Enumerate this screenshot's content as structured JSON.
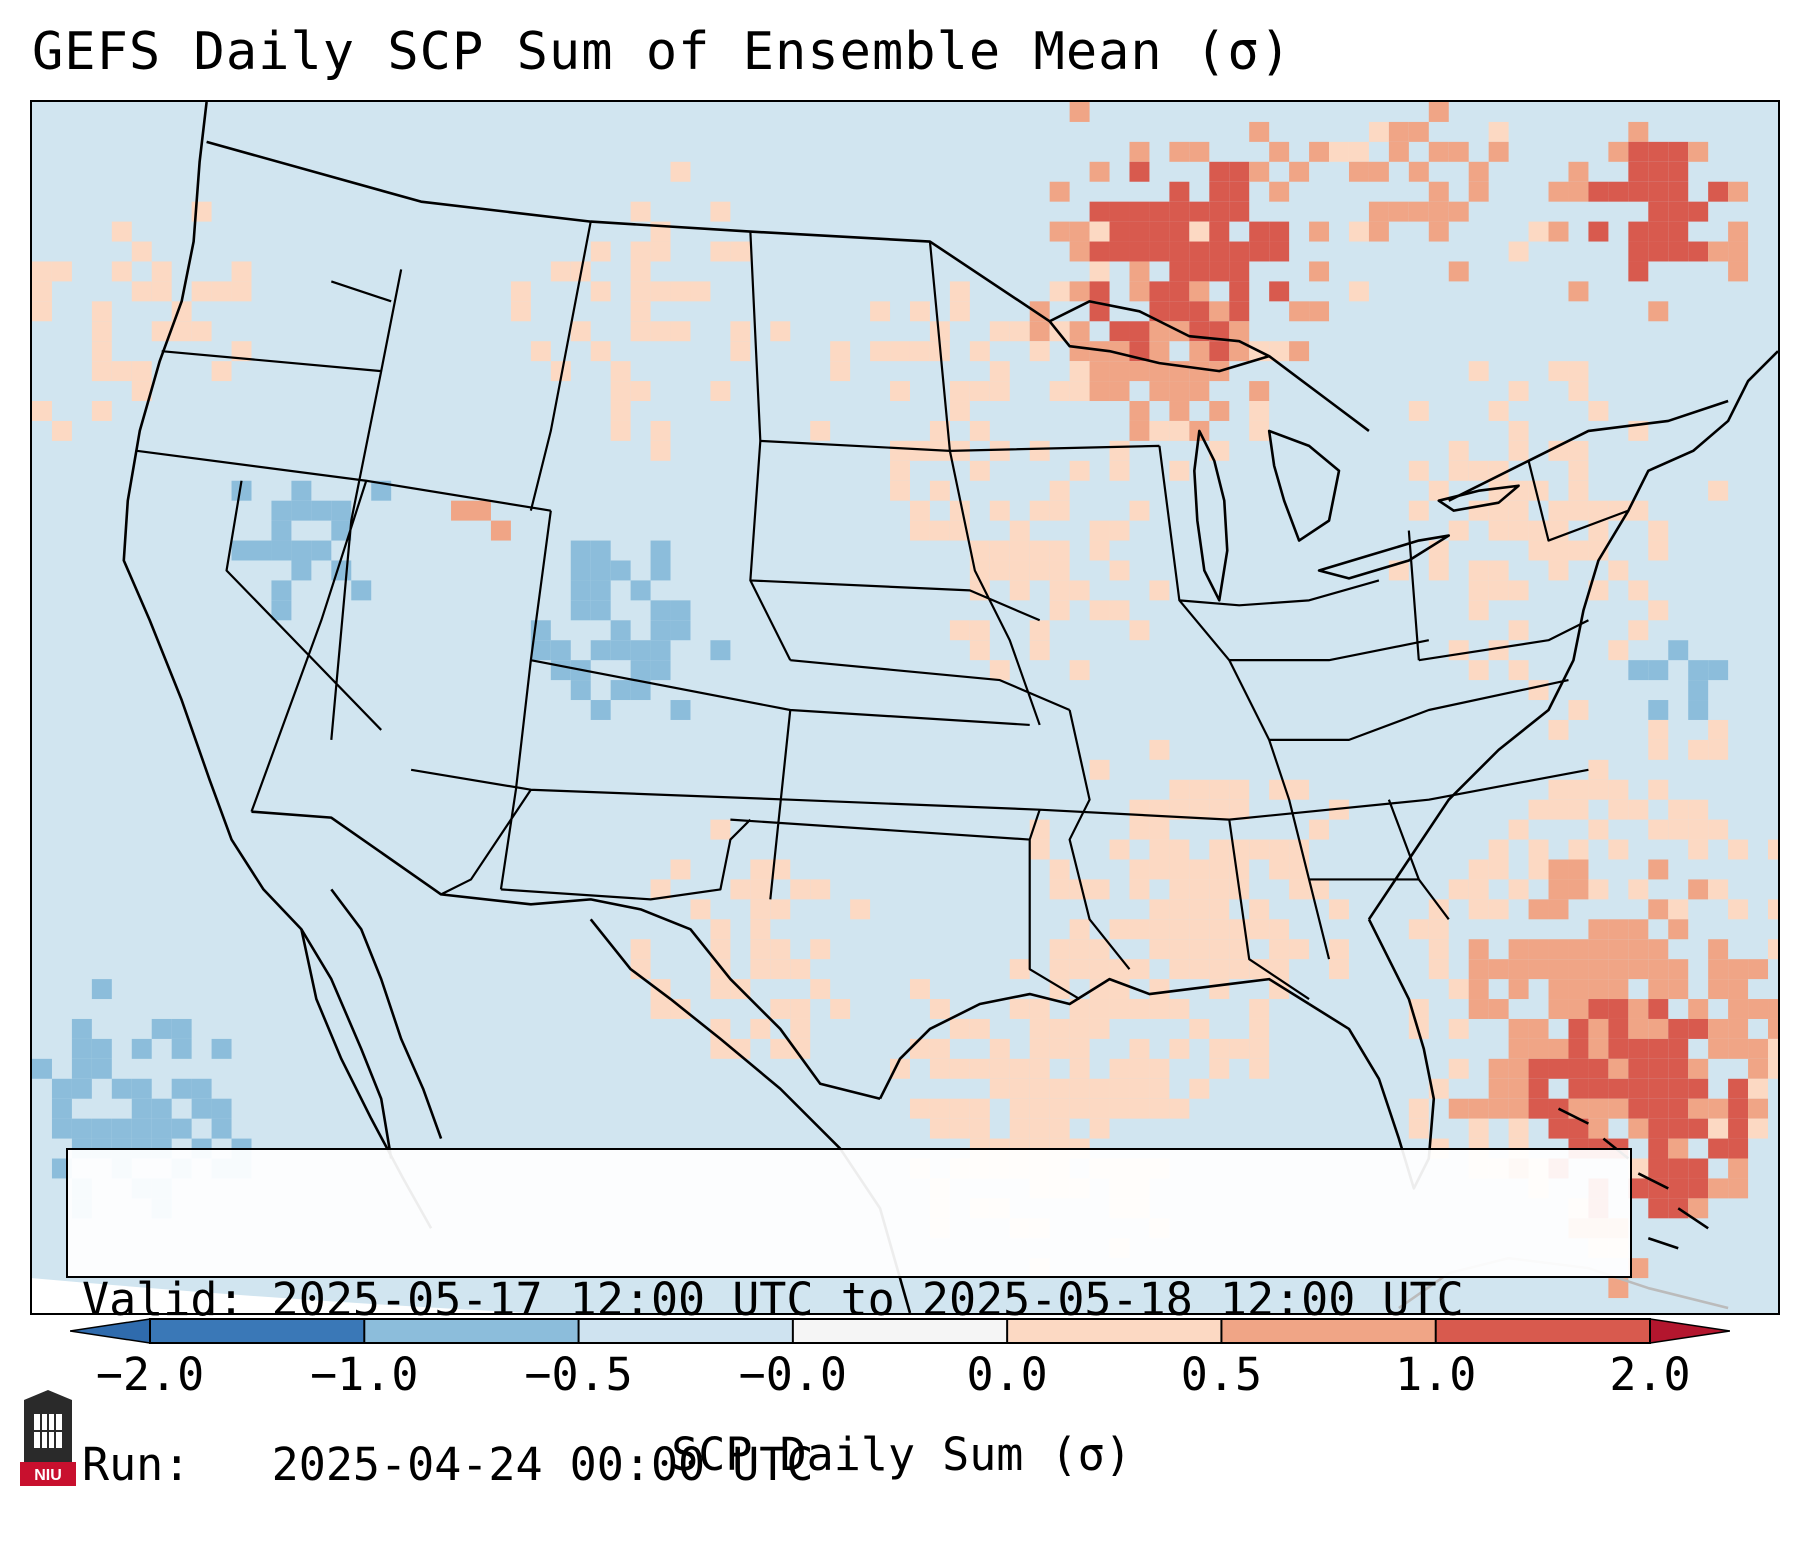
{
  "title": "GEFS Daily SCP Sum of Ensemble Mean (σ)",
  "info": {
    "valid_line": "Valid: 2025-05-17 12:00 UTC to 2025-05-18 12:00 UTC",
    "run_line": "Run:   2025-04-24 00:00 UTC"
  },
  "colorbar": {
    "label": "SCP Daily Sum (σ)",
    "ticks": [
      "−2.0",
      "−1.0",
      "−0.5",
      "−0.0",
      "0.0",
      "0.5",
      "1.0",
      "2.0"
    ],
    "colors": [
      "#3a78b7",
      "#8cbddb",
      "#cfe3f0",
      "#f5f5f5",
      "#fcd9c3",
      "#f0a586",
      "#d85a4e"
    ],
    "extend_low_color": "#2f6bad",
    "extend_high_color": "#b3162e"
  },
  "map": {
    "background_color": "#d1e5f0",
    "outline_color": "#000000",
    "logo_text": "NIU"
  }
}
